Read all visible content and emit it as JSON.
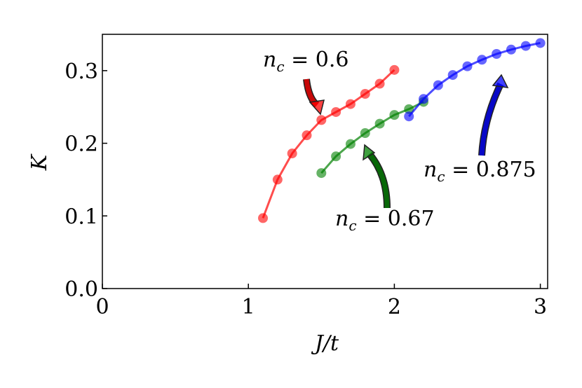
{
  "chart_data": {
    "type": "line",
    "x_label": "J/t",
    "y_label": "K",
    "xlim": [
      0,
      3.05
    ],
    "ylim": [
      0,
      0.35
    ],
    "xticks": [
      0,
      1,
      2,
      3
    ],
    "yticks": [
      {
        "value": 0,
        "label": "0.0"
      },
      0.1,
      0.2,
      0.3
    ],
    "series": [
      {
        "color": "#ff0000",
        "x": [
          1.1,
          1.2,
          1.3,
          1.4,
          1.5,
          1.6,
          1.7,
          1.8,
          1.9,
          2.0
        ],
        "values": [
          0.097,
          0.15,
          0.186,
          0.211,
          0.232,
          0.243,
          0.254,
          0.268,
          0.282,
          0.301
        ]
      },
      {
        "color": "#008000",
        "x": [
          1.5,
          1.6,
          1.7,
          1.8,
          1.9,
          2.0,
          2.1,
          2.2
        ],
        "values": [
          0.159,
          0.182,
          0.199,
          0.214,
          0.227,
          0.239,
          0.247,
          0.257
        ]
      },
      {
        "color": "#0000ff",
        "x": [
          2.1,
          2.2,
          2.3,
          2.4,
          2.5,
          2.6,
          2.7,
          2.8,
          2.9,
          3.0
        ],
        "values": [
          0.237,
          0.261,
          0.28,
          0.294,
          0.306,
          0.315,
          0.323,
          0.329,
          0.334,
          0.338
        ]
      }
    ],
    "annotations": [
      {
        "symbol": "n",
        "subscript": "c",
        "text": " = 0.6"
      },
      {
        "symbol": "n",
        "subscript": "c",
        "text": " = 0.67"
      },
      {
        "symbol": "n",
        "subscript": "c",
        "text": " = 0.875"
      }
    ]
  }
}
